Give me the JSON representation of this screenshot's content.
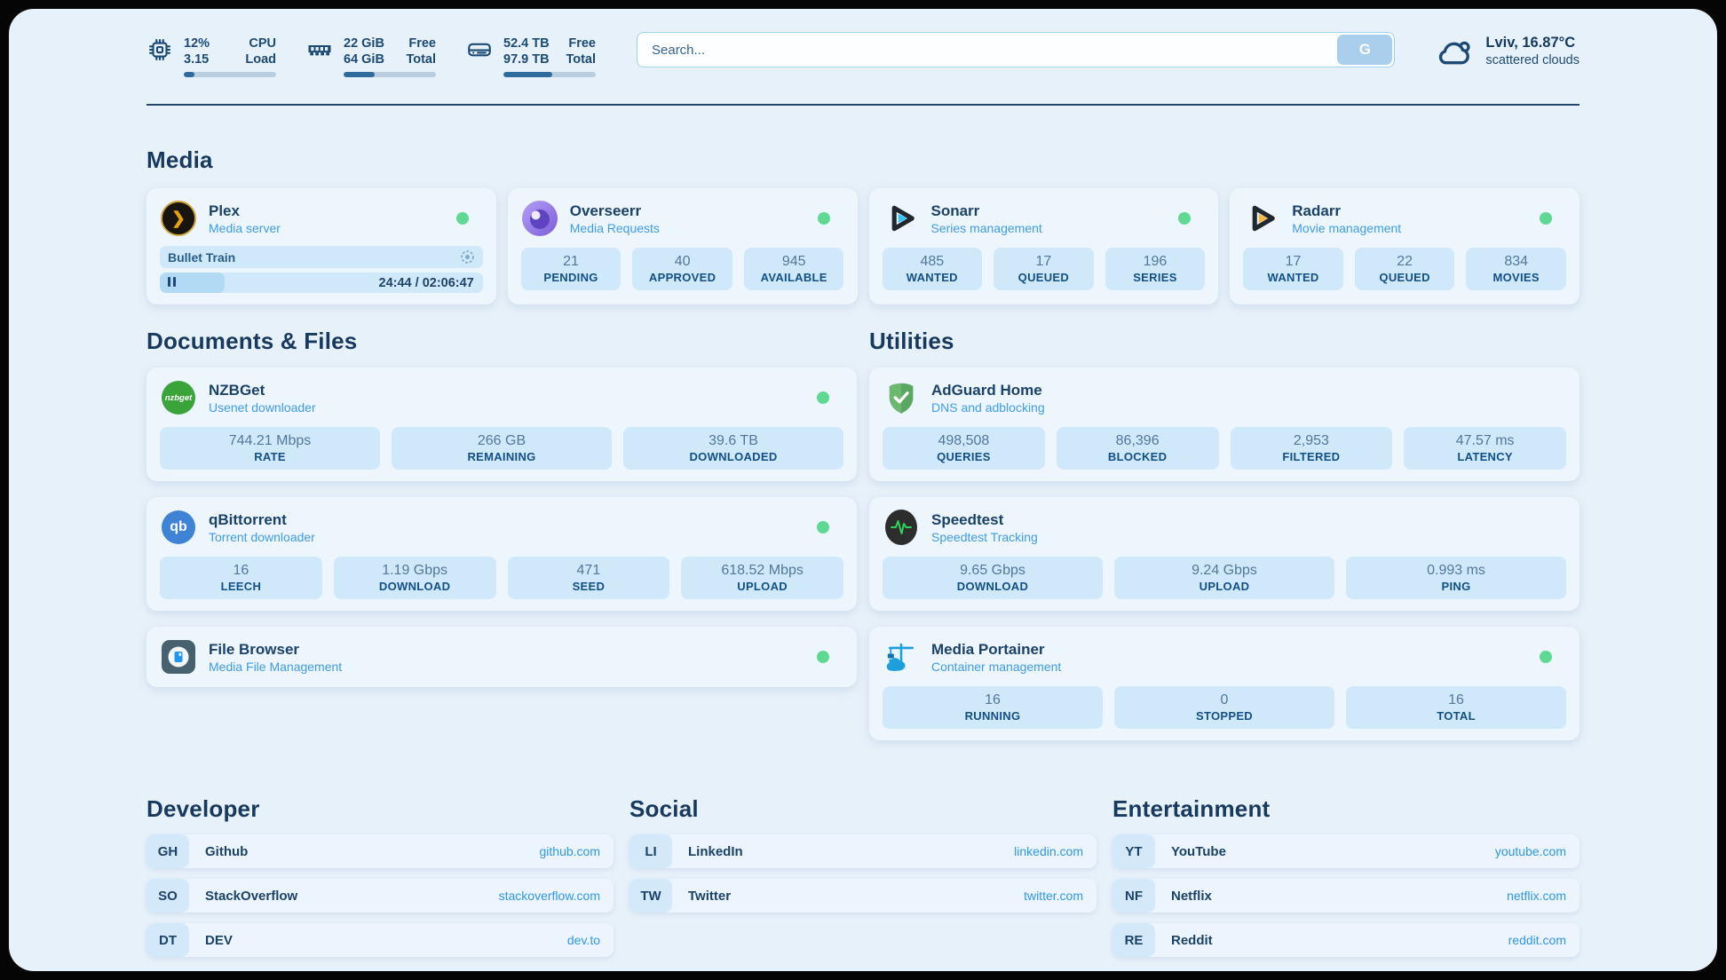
{
  "topbar": {
    "cpu": {
      "icon": "cpu-chip-icon",
      "value_top": "12%",
      "value_bottom": "3.15",
      "label_top": "CPU",
      "label_bottom": "Load",
      "progress_pct": 12
    },
    "ram": {
      "icon": "memory-icon",
      "value_top": "22 GiB",
      "value_bottom": "64 GiB",
      "label_top": "Free",
      "label_bottom": "Total",
      "progress_pct": 34
    },
    "disk": {
      "icon": "hard-drive-icon",
      "value_top": "52.4 TB",
      "value_bottom": "97.9 TB",
      "label_top": "Free",
      "label_bottom": "Total",
      "progress_pct": 53
    },
    "search": {
      "placeholder": "Search...",
      "button_label": "G"
    },
    "weather": {
      "icon": "cloud-icon",
      "headline": "Lviv, 16.87°C",
      "condition": "scattered clouds"
    }
  },
  "media": {
    "title": "Media",
    "plex": {
      "title": "Plex",
      "subtitle": "Media server",
      "online": true,
      "player": {
        "track": "Bullet Train",
        "time": "24:44 / 02:06:47",
        "progress_pct": 20
      }
    },
    "overseerr": {
      "title": "Overseerr",
      "subtitle": "Media Requests",
      "online": true,
      "stats": [
        {
          "value": "21",
          "label": "PENDING"
        },
        {
          "value": "40",
          "label": "APPROVED"
        },
        {
          "value": "945",
          "label": "AVAILABLE"
        }
      ]
    },
    "sonarr": {
      "title": "Sonarr",
      "subtitle": "Series management",
      "online": true,
      "stats": [
        {
          "value": "485",
          "label": "WANTED"
        },
        {
          "value": "17",
          "label": "QUEUED"
        },
        {
          "value": "196",
          "label": "SERIES"
        }
      ]
    },
    "radarr": {
      "title": "Radarr",
      "subtitle": "Movie management",
      "online": true,
      "stats": [
        {
          "value": "17",
          "label": "WANTED"
        },
        {
          "value": "22",
          "label": "QUEUED"
        },
        {
          "value": "834",
          "label": "MOVIES"
        }
      ]
    }
  },
  "documents": {
    "title": "Documents & Files",
    "nzbget": {
      "title": "NZBGet",
      "subtitle": "Usenet downloader",
      "online": true,
      "badge_text": "nzbget",
      "stats": [
        {
          "value": "744.21 Mbps",
          "label": "RATE"
        },
        {
          "value": "266 GB",
          "label": "REMAINING"
        },
        {
          "value": "39.6 TB",
          "label": "DOWNLOADED"
        }
      ]
    },
    "qbittorrent": {
      "title": "qBittorrent",
      "subtitle": "Torrent downloader",
      "online": true,
      "badge_text": "qb",
      "stats": [
        {
          "value": "16",
          "label": "LEECH"
        },
        {
          "value": "1.19 Gbps",
          "label": "DOWNLOAD"
        },
        {
          "value": "471",
          "label": "SEED"
        },
        {
          "value": "618.52 Mbps",
          "label": "UPLOAD"
        }
      ]
    },
    "filebrowser": {
      "title": "File Browser",
      "subtitle": "Media File Management",
      "online": true
    }
  },
  "utilities": {
    "title": "Utilities",
    "adguard": {
      "title": "AdGuard Home",
      "subtitle": "DNS and adblocking",
      "online": false,
      "stats": [
        {
          "value": "498,508",
          "label": "QUERIES"
        },
        {
          "value": "86,396",
          "label": "BLOCKED"
        },
        {
          "value": "2,953",
          "label": "FILTERED"
        },
        {
          "value": "47.57 ms",
          "label": "LATENCY"
        }
      ]
    },
    "speedtest": {
      "title": "Speedtest",
      "subtitle": "Speedtest Tracking",
      "online": false,
      "stats": [
        {
          "value": "9.65 Gbps",
          "label": "DOWNLOAD"
        },
        {
          "value": "9.24 Gbps",
          "label": "UPLOAD"
        },
        {
          "value": "0.993 ms",
          "label": "PING"
        }
      ]
    },
    "portainer": {
      "title": "Media Portainer",
      "subtitle": "Container management",
      "online": true,
      "stats": [
        {
          "value": "16",
          "label": "RUNNING"
        },
        {
          "value": "0",
          "label": "STOPPED"
        },
        {
          "value": "16",
          "label": "TOTAL"
        }
      ]
    }
  },
  "links": {
    "developer": {
      "title": "Developer",
      "items": [
        {
          "abbr": "GH",
          "name": "Github",
          "url": "github.com"
        },
        {
          "abbr": "SO",
          "name": "StackOverflow",
          "url": "stackoverflow.com"
        },
        {
          "abbr": "DT",
          "name": "DEV",
          "url": "dev.to"
        }
      ]
    },
    "social": {
      "title": "Social",
      "items": [
        {
          "abbr": "LI",
          "name": "LinkedIn",
          "url": "linkedin.com"
        },
        {
          "abbr": "TW",
          "name": "Twitter",
          "url": "twitter.com"
        }
      ]
    },
    "entertainment": {
      "title": "Entertainment",
      "items": [
        {
          "abbr": "YT",
          "name": "YouTube",
          "url": "youtube.com"
        },
        {
          "abbr": "NF",
          "name": "Netflix",
          "url": "netflix.com"
        },
        {
          "abbr": "RE",
          "name": "Reddit",
          "url": "reddit.com"
        }
      ]
    }
  },
  "colors": {
    "page_bg": "#e7f1fa",
    "card_bg": "#edf5fd",
    "stat_box_bg": "#cfe9fb",
    "navy": "#1b4268",
    "accent_blue": "#3f9ce6",
    "link_blue": "#2f96e8",
    "status_green": "#5ed893",
    "bar_fill": "#2f6b9d",
    "bar_track": "#b9cfe0",
    "plex_amber": "#e5a00d",
    "sonarr_cyan": "#35c5f4",
    "radarr_yellow": "#f6b93f",
    "nzbget_green": "#3aa33a",
    "qbittorrent_blue": "#3f83d6",
    "adguard_green": "#67b36a",
    "speedtest_pulse": "#30d158",
    "portainer_blue": "#1d9fdd"
  }
}
